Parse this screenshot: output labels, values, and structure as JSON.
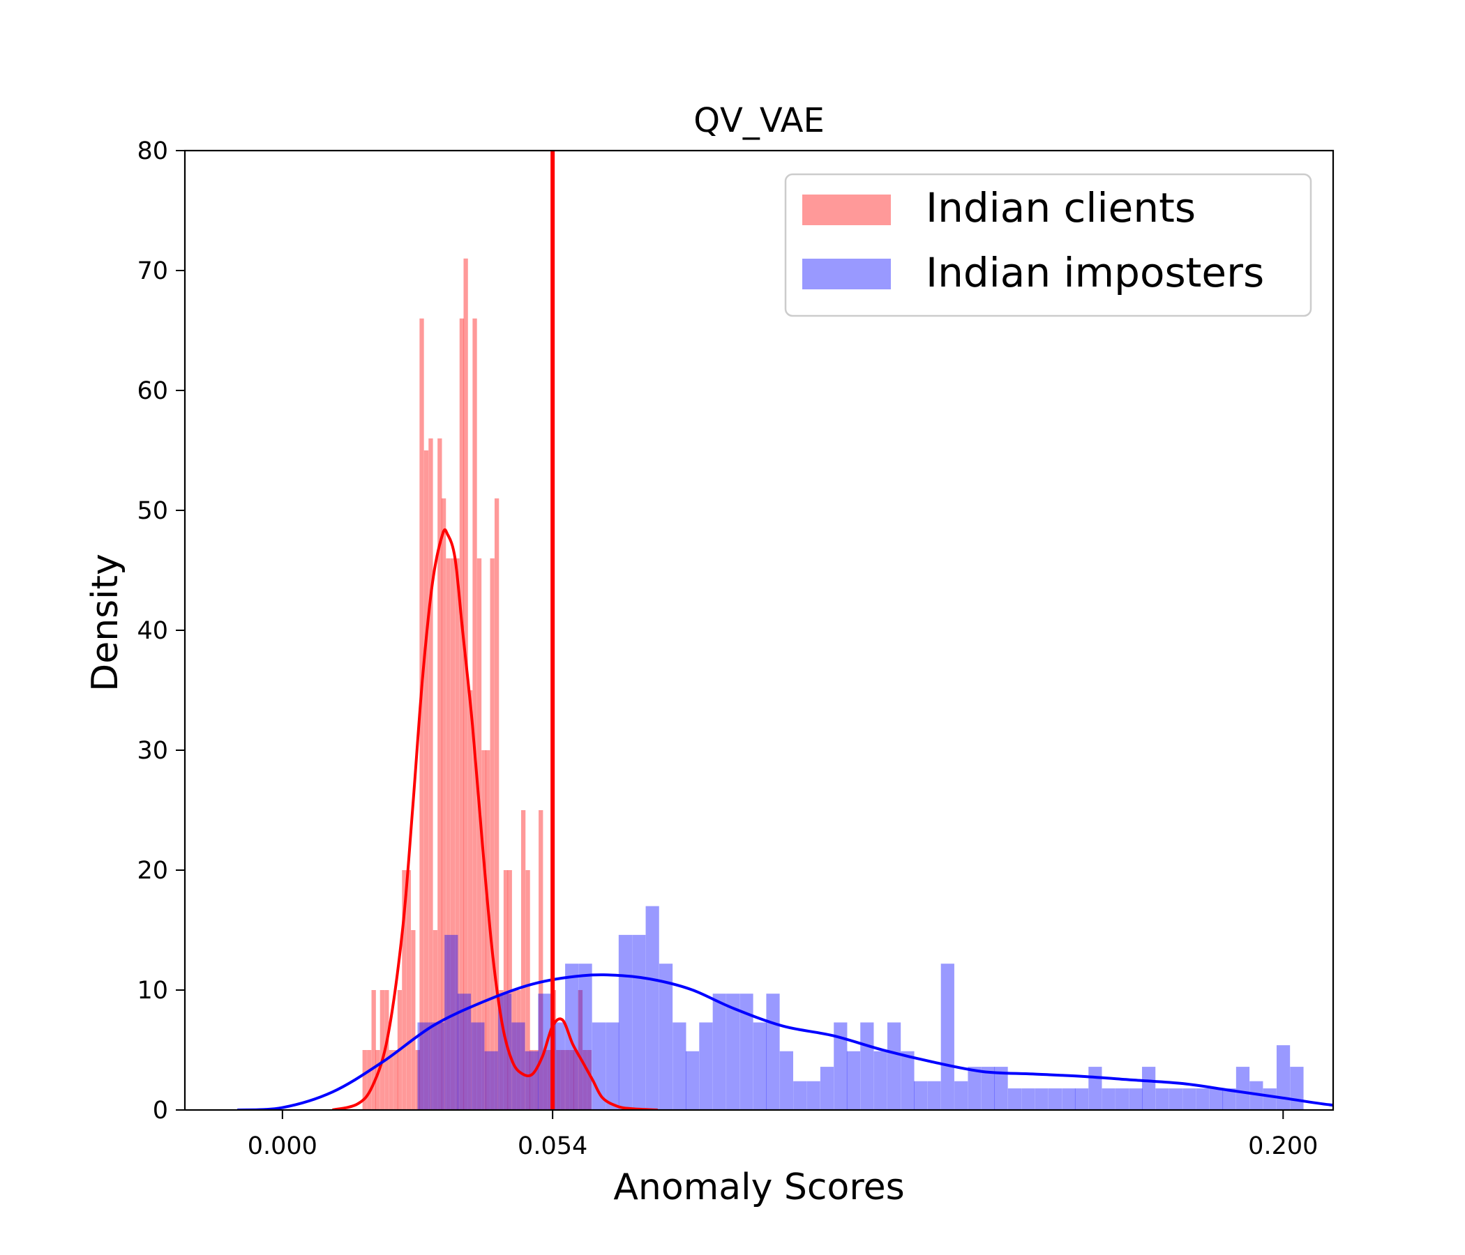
{
  "chart_data": {
    "type": "histogram",
    "title": "QV_VAE",
    "xlabel": "Anomaly Scores",
    "ylabel": "Density",
    "xlim": [
      -0.0195,
      0.21
    ],
    "ylim": [
      0,
      80
    ],
    "xticks": [
      0.0,
      0.054,
      0.2
    ],
    "xtick_labels": [
      "0.000",
      "0.054",
      "0.200"
    ],
    "yticks": [
      0,
      10,
      20,
      30,
      40,
      50,
      60,
      70,
      80
    ],
    "ytick_labels": [
      "0",
      "10",
      "20",
      "30",
      "40",
      "50",
      "60",
      "70",
      "80"
    ],
    "threshold": {
      "x": 0.054,
      "color": "#ff0000"
    },
    "legend": {
      "position": "upper right",
      "entries": [
        "Indian clients",
        "Indian imposters"
      ]
    },
    "series": [
      {
        "name": "Indian clients",
        "color": "#ff0000",
        "bar_opacity": 0.4,
        "bin_width": 0.00088,
        "bins": [
          [
            0.016,
            5.0
          ],
          [
            0.0169,
            5.0
          ],
          [
            0.0178,
            10.0
          ],
          [
            0.0186,
            5.0
          ],
          [
            0.0195,
            10.0
          ],
          [
            0.0204,
            10.0
          ],
          [
            0.0213,
            5.0
          ],
          [
            0.0222,
            5.0
          ],
          [
            0.023,
            10.0
          ],
          [
            0.0239,
            20.0
          ],
          [
            0.0248,
            20.0
          ],
          [
            0.0257,
            15.0
          ],
          [
            0.0266,
            5.0
          ],
          [
            0.0274,
            66.0
          ],
          [
            0.0283,
            55.0
          ],
          [
            0.0292,
            56.0
          ],
          [
            0.0301,
            15.0
          ],
          [
            0.031,
            56.0
          ],
          [
            0.0318,
            51.0
          ],
          [
            0.0327,
            46.0
          ],
          [
            0.0336,
            46.0
          ],
          [
            0.0345,
            46.0
          ],
          [
            0.0354,
            66.0
          ],
          [
            0.0362,
            71.0
          ],
          [
            0.0371,
            35.0
          ],
          [
            0.038,
            66.0
          ],
          [
            0.0389,
            46.0
          ],
          [
            0.0398,
            30.0
          ],
          [
            0.0406,
            30.0
          ],
          [
            0.0415,
            46.0
          ],
          [
            0.0424,
            51.0
          ],
          [
            0.0433,
            10.0
          ],
          [
            0.0442,
            20.0
          ],
          [
            0.045,
            20.0
          ],
          [
            0.0459,
            10.0
          ],
          [
            0.0468,
            10.0
          ],
          [
            0.0477,
            25.0
          ],
          [
            0.0486,
            20.0
          ],
          [
            0.0494,
            5.0
          ],
          [
            0.0503,
            5.0
          ],
          [
            0.0512,
            25.0
          ],
          [
            0.0521,
            5.0
          ],
          [
            0.053,
            5.0
          ],
          [
            0.0538,
            10.0
          ],
          [
            0.0547,
            5.0
          ],
          [
            0.0556,
            5.0
          ],
          [
            0.0565,
            5.0
          ],
          [
            0.0574,
            5.0
          ],
          [
            0.0582,
            5.0
          ],
          [
            0.0591,
            10.0
          ],
          [
            0.06,
            5.0
          ],
          [
            0.0609,
            5.0
          ]
        ],
        "kde": {
          "x": [
            0.01,
            0.015,
            0.018,
            0.021,
            0.024,
            0.026,
            0.028,
            0.03,
            0.032,
            0.033,
            0.0345,
            0.036,
            0.038,
            0.04,
            0.042,
            0.044,
            0.046,
            0.048,
            0.05,
            0.052,
            0.054,
            0.056,
            0.058,
            0.06,
            0.062,
            0.064,
            0.067,
            0.07,
            0.075
          ],
          "y": [
            0.0,
            0.5,
            2.0,
            6.0,
            15.0,
            25.0,
            36.0,
            44.0,
            48.0,
            48.0,
            46.0,
            40.0,
            32.0,
            22.0,
            13.0,
            7.0,
            4.0,
            3.0,
            3.0,
            4.5,
            7.0,
            7.5,
            5.5,
            4.0,
            2.5,
            1.0,
            0.3,
            0.1,
            0.0
          ]
        }
      },
      {
        "name": "Indian imposters",
        "color": "#0000ff",
        "bar_opacity": 0.4,
        "bin_width": 0.00268,
        "bins": [
          [
            0.027,
            7.3
          ],
          [
            0.0297,
            7.3
          ],
          [
            0.0324,
            14.6
          ],
          [
            0.035,
            9.7
          ],
          [
            0.0377,
            7.3
          ],
          [
            0.0404,
            4.9
          ],
          [
            0.0431,
            9.7
          ],
          [
            0.0458,
            7.3
          ],
          [
            0.0485,
            4.9
          ],
          [
            0.0511,
            9.7
          ],
          [
            0.0538,
            7.3
          ],
          [
            0.0565,
            12.2
          ],
          [
            0.0592,
            12.2
          ],
          [
            0.0619,
            7.3
          ],
          [
            0.0646,
            7.3
          ],
          [
            0.0672,
            14.6
          ],
          [
            0.0699,
            14.6
          ],
          [
            0.0726,
            17.0
          ],
          [
            0.0753,
            12.2
          ],
          [
            0.078,
            7.3
          ],
          [
            0.0806,
            4.9
          ],
          [
            0.0833,
            7.3
          ],
          [
            0.086,
            9.7
          ],
          [
            0.0887,
            9.7
          ],
          [
            0.0914,
            9.7
          ],
          [
            0.0941,
            7.3
          ],
          [
            0.0967,
            9.7
          ],
          [
            0.0994,
            4.9
          ],
          [
            0.1021,
            2.4
          ],
          [
            0.1048,
            2.4
          ],
          [
            0.1075,
            3.6
          ],
          [
            0.1102,
            7.3
          ],
          [
            0.1128,
            4.9
          ],
          [
            0.1155,
            7.3
          ],
          [
            0.1182,
            4.9
          ],
          [
            0.1209,
            7.3
          ],
          [
            0.1236,
            4.9
          ],
          [
            0.1262,
            2.4
          ],
          [
            0.1289,
            2.4
          ],
          [
            0.1316,
            12.2
          ],
          [
            0.1343,
            2.4
          ],
          [
            0.137,
            3.6
          ],
          [
            0.1397,
            3.6
          ],
          [
            0.1423,
            3.6
          ],
          [
            0.145,
            1.8
          ],
          [
            0.1477,
            1.8
          ],
          [
            0.1504,
            1.8
          ],
          [
            0.1531,
            1.8
          ],
          [
            0.1558,
            1.8
          ],
          [
            0.1584,
            1.8
          ],
          [
            0.1611,
            3.6
          ],
          [
            0.1638,
            1.8
          ],
          [
            0.1665,
            1.8
          ],
          [
            0.1692,
            1.8
          ],
          [
            0.1718,
            3.6
          ],
          [
            0.1745,
            1.8
          ],
          [
            0.1772,
            1.8
          ],
          [
            0.1799,
            1.8
          ],
          [
            0.1826,
            1.8
          ],
          [
            0.1853,
            1.8
          ],
          [
            0.1879,
            1.8
          ],
          [
            0.1906,
            3.6
          ],
          [
            0.1933,
            2.4
          ],
          [
            0.196,
            1.8
          ],
          [
            0.1987,
            5.4
          ],
          [
            0.2014,
            3.6
          ]
        ],
        "kde": {
          "x": [
            -0.009,
            0.0,
            0.01,
            0.02,
            0.03,
            0.04,
            0.05,
            0.06,
            0.068,
            0.075,
            0.082,
            0.09,
            0.1,
            0.11,
            0.12,
            0.13,
            0.14,
            0.15,
            0.16,
            0.17,
            0.18,
            0.19,
            0.2,
            0.21,
            0.22,
            0.23
          ],
          "y": [
            0.0,
            0.2,
            1.5,
            4.0,
            7.0,
            9.0,
            10.5,
            11.2,
            11.2,
            10.8,
            10.0,
            8.5,
            7.0,
            6.2,
            5.0,
            4.0,
            3.2,
            3.0,
            2.8,
            2.5,
            2.2,
            1.6,
            1.0,
            0.4,
            0.1,
            0.0
          ]
        }
      }
    ]
  }
}
